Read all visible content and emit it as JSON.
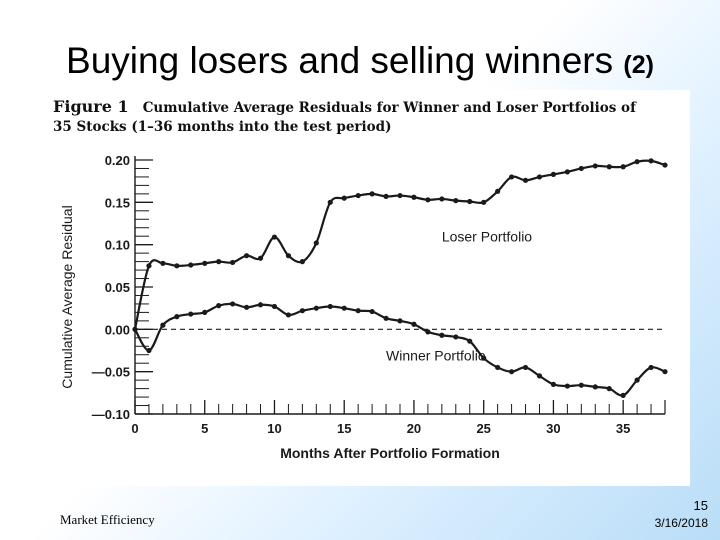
{
  "slide": {
    "title": "Buying losers and selling winners",
    "title_suffix": "(2)",
    "footer": "Market Efficiency",
    "page_number": "15",
    "date": "3/16/2018"
  },
  "figure": {
    "caption_label": "Figure 1",
    "caption_line1": "Cumulative Average Residuals for Winner and Loser Portfolios of",
    "caption_line2": "35 Stocks (1–36 months into the test period)"
  },
  "chart_data": {
    "type": "line",
    "title": "Cumulative Average Residuals for Winner and Loser Portfolios of 35 Stocks (1–36 months into the test period)",
    "xlabel": "Months After Portfolio Formation",
    "ylabel": "Cumulative Average Residual",
    "xlim": [
      0,
      38
    ],
    "ylim": [
      -0.1,
      0.2
    ],
    "x_ticks": [
      0,
      5,
      10,
      15,
      20,
      25,
      30,
      35
    ],
    "x_tick_labels": [
      "0",
      "5",
      "10",
      "15",
      "20",
      "25",
      "30",
      "35"
    ],
    "y_ticks": [
      0.2,
      0.15,
      0.1,
      0.05,
      0.0,
      -0.05,
      -0.1
    ],
    "y_tick_labels": [
      "0.20",
      "0.15",
      "0.10",
      "0.05",
      "0.00",
      "—0.05",
      "—0.10"
    ],
    "reference_line": 0.0,
    "series": [
      {
        "name": "Loser Portfolio",
        "label": "Loser Portfolio",
        "x": [
          0,
          1,
          2,
          3,
          4,
          5,
          6,
          7,
          8,
          9,
          10,
          11,
          12,
          13,
          14,
          15,
          16,
          17,
          18,
          19,
          20,
          21,
          22,
          23,
          24,
          25,
          26,
          27,
          28,
          29,
          30,
          31,
          32,
          33,
          34,
          35,
          36,
          37,
          38
        ],
        "values": [
          0.0,
          0.075,
          0.078,
          0.075,
          0.076,
          0.078,
          0.08,
          0.079,
          0.087,
          0.084,
          0.109,
          0.087,
          0.08,
          0.102,
          0.15,
          0.155,
          0.158,
          0.16,
          0.157,
          0.158,
          0.156,
          0.153,
          0.154,
          0.152,
          0.151,
          0.15,
          0.163,
          0.18,
          0.176,
          0.18,
          0.183,
          0.186,
          0.19,
          0.193,
          0.192,
          0.192,
          0.198,
          0.199,
          0.194
        ]
      },
      {
        "name": "Winner Portfolio",
        "label": "Winner Portfolio",
        "x": [
          0,
          1,
          2,
          3,
          4,
          5,
          6,
          7,
          8,
          9,
          10,
          11,
          12,
          13,
          14,
          15,
          16,
          17,
          18,
          19,
          20,
          21,
          22,
          23,
          24,
          25,
          26,
          27,
          28,
          29,
          30,
          31,
          32,
          33,
          34,
          35,
          36,
          37,
          38
        ],
        "values": [
          0.0,
          -0.025,
          0.005,
          0.015,
          0.018,
          0.02,
          0.028,
          0.03,
          0.026,
          0.029,
          0.027,
          0.017,
          0.022,
          0.025,
          0.027,
          0.025,
          0.022,
          0.021,
          0.013,
          0.01,
          0.006,
          -0.003,
          -0.007,
          -0.009,
          -0.014,
          -0.034,
          -0.045,
          -0.05,
          -0.045,
          -0.055,
          -0.065,
          -0.067,
          -0.066,
          -0.068,
          -0.07,
          -0.078,
          -0.06,
          -0.045,
          -0.05
        ]
      }
    ]
  }
}
